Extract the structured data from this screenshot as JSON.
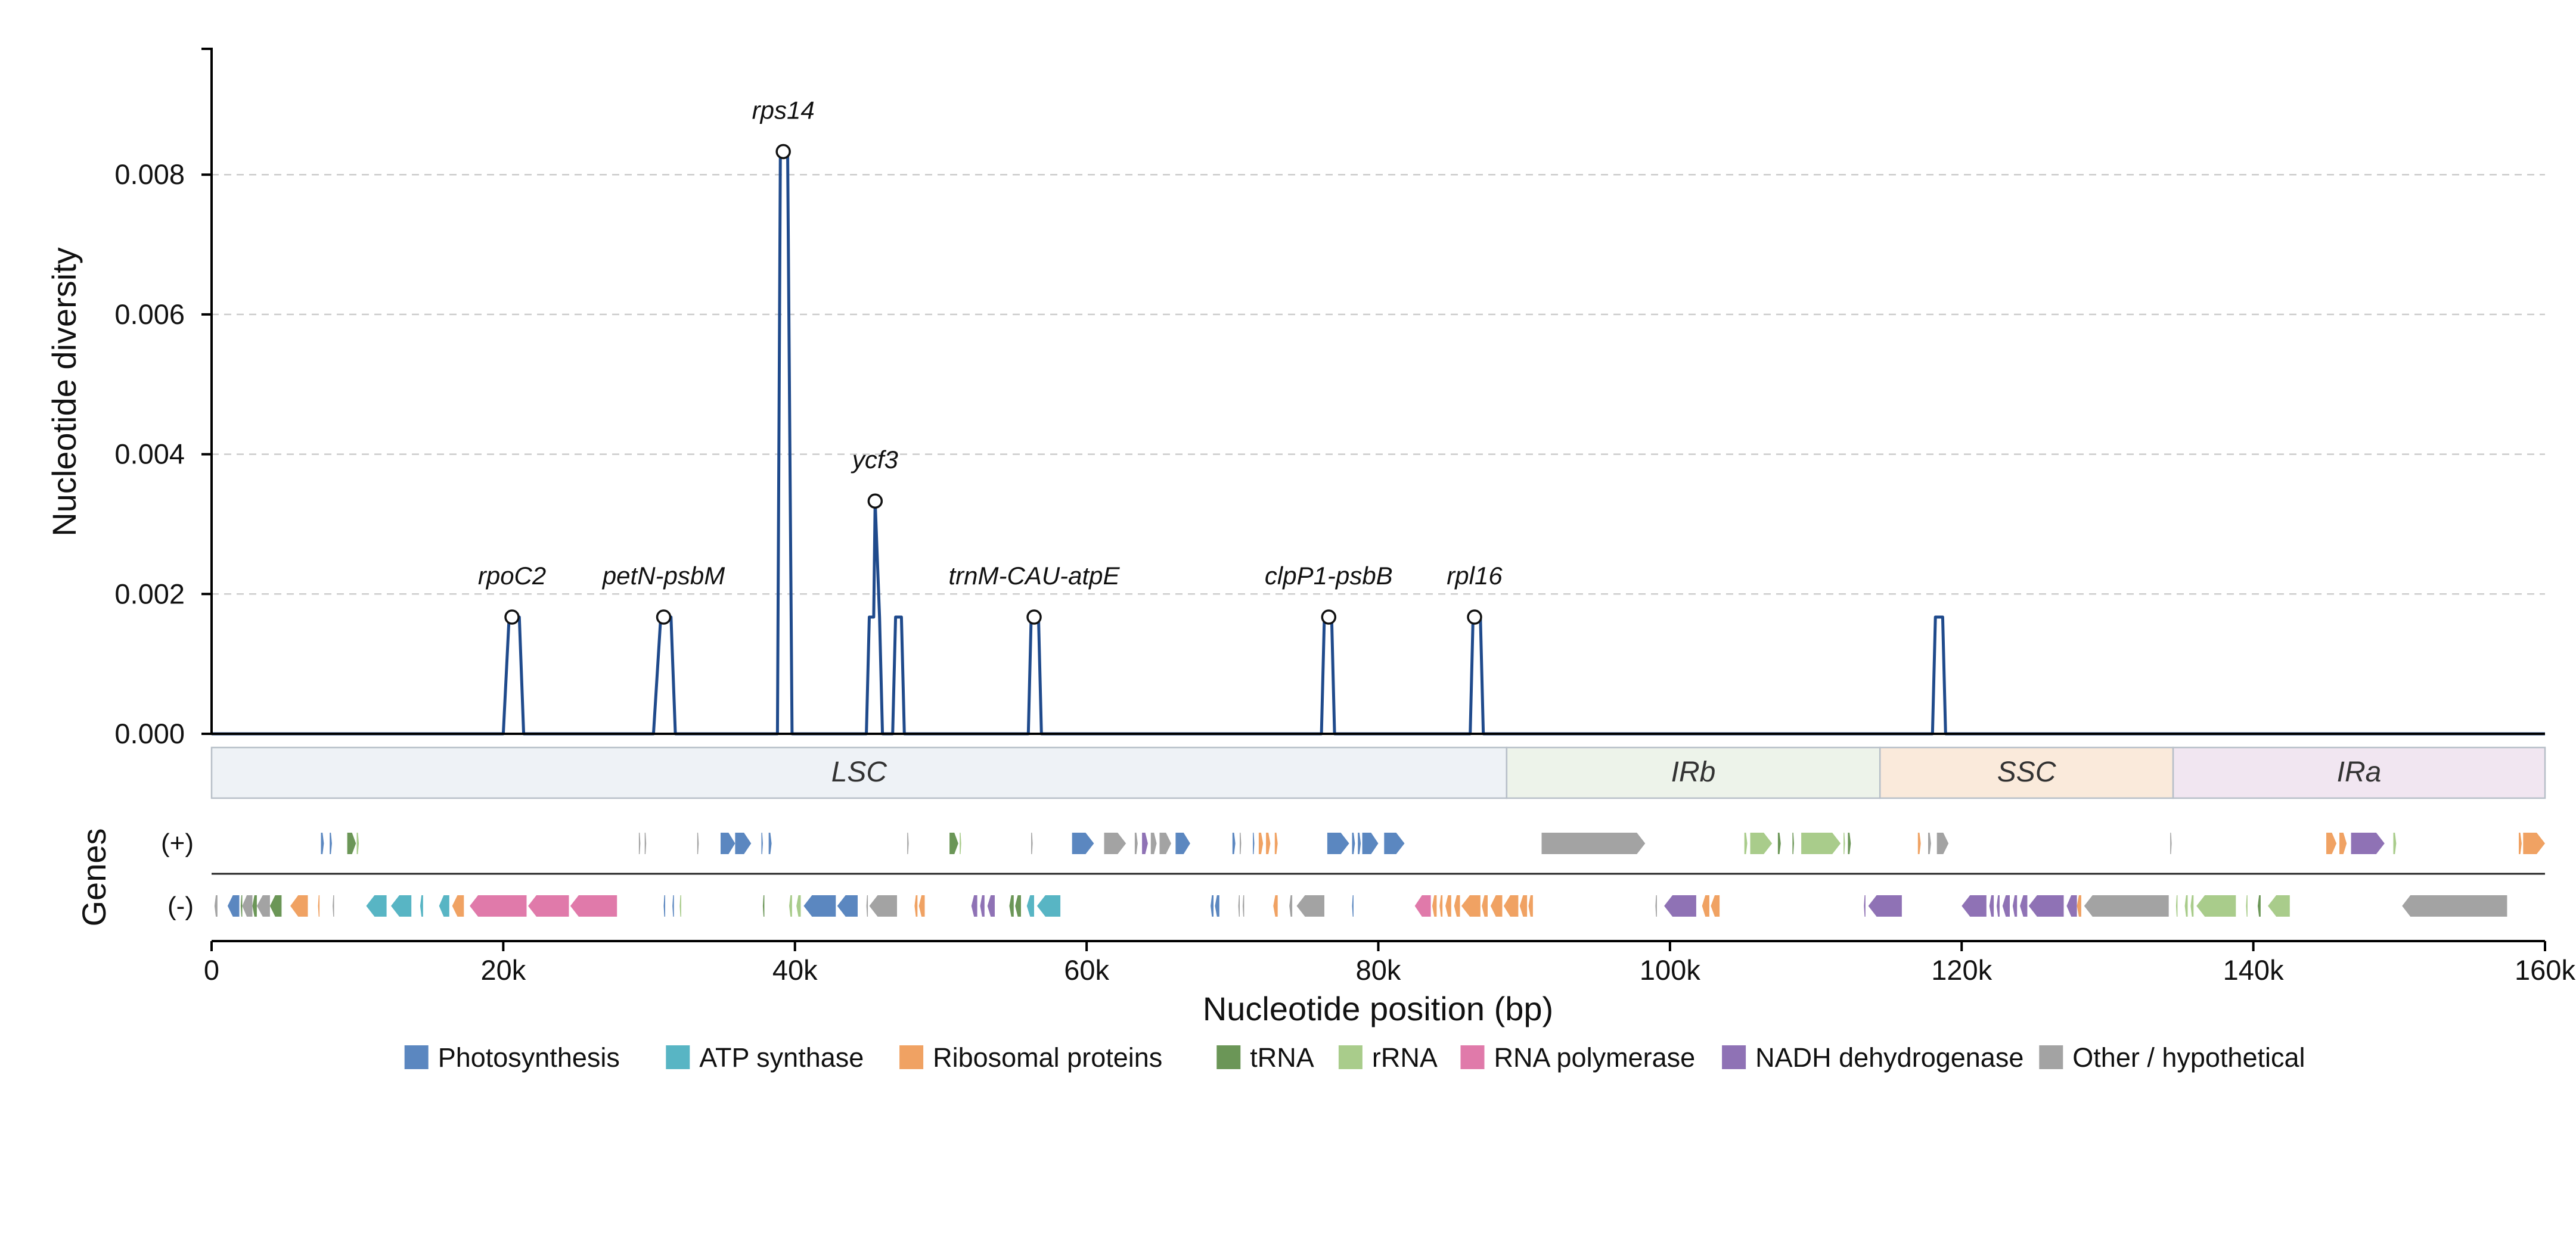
{
  "chart_data": {
    "type": "line",
    "ylabel": "Nucleotide diversity",
    "xlabel": "Nucleotide position (bp)",
    "genes_axis_label": "Genes",
    "ylim": [
      0,
      0.0098
    ],
    "xlim": [
      0,
      160000
    ],
    "yticks": [
      0.0,
      0.002,
      0.004,
      0.006,
      0.008
    ],
    "ytick_labels": [
      "0.000",
      "0.002",
      "0.004",
      "0.006",
      "0.008"
    ],
    "xticks": [
      0,
      20000,
      40000,
      60000,
      80000,
      100000,
      120000,
      140000,
      160000
    ],
    "xtick_labels": [
      "0",
      "20k",
      "40k",
      "60k",
      "80k",
      "100k",
      "120k",
      "140k",
      "160k"
    ],
    "grid": true,
    "series_color": "#1f4a8c",
    "series": [
      {
        "x": [
          0,
          20000,
          20400,
          21100,
          21400,
          30300,
          30800,
          31500,
          31800,
          38800,
          39000,
          39500,
          39800,
          44900,
          45100,
          45400,
          45500,
          45800,
          46000,
          46700,
          46900,
          47300,
          47500,
          56000,
          56200,
          56700,
          56900,
          76100,
          76300,
          76800,
          77000,
          86300,
          86500,
          87000,
          87200,
          118000,
          118200,
          118700,
          118900,
          160000
        ],
        "y": [
          0,
          0,
          0.00167,
          0.00167,
          0,
          0,
          0.00167,
          0.00167,
          0,
          0,
          0.00833,
          0.00833,
          0,
          0,
          0.00167,
          0.00167,
          0.00333,
          0.00167,
          0,
          0,
          0.00167,
          0.00167,
          0,
          0,
          0.00167,
          0.00167,
          0,
          0,
          0.00167,
          0.00167,
          0,
          0,
          0.00167,
          0.00167,
          0,
          0,
          0.00167,
          0.00167,
          0,
          0
        ]
      }
    ],
    "peaks": [
      {
        "label": "rpoC2",
        "x": 20600,
        "y": 0.00167
      },
      {
        "label": "petN-psbM",
        "x": 31000,
        "y": 0.00167
      },
      {
        "label": "rps14",
        "x": 39200,
        "y": 0.00833
      },
      {
        "label": "ycf3",
        "x": 45500,
        "y": 0.00333
      },
      {
        "label": "trnM-CAU-atpE",
        "x": 56400,
        "y": 0.00167
      },
      {
        "label": "clpP1-psbB",
        "x": 76600,
        "y": 0.00167
      },
      {
        "label": "rpl16",
        "x": 86600,
        "y": 0.00167
      }
    ],
    "regions": [
      {
        "label": "LSC",
        "start": 0,
        "end": 88800,
        "color": "#eef2f6"
      },
      {
        "label": "IRb",
        "start": 88800,
        "end": 114400,
        "color": "#edf3ea"
      },
      {
        "label": "SSC",
        "start": 114400,
        "end": 134500,
        "color": "#faeadb"
      },
      {
        "label": "IRa",
        "start": 134500,
        "end": 160000,
        "color": "#f1e6f1"
      }
    ],
    "strands": {
      "plus": "(+)",
      "minus": "(-)"
    },
    "gene_categories": [
      {
        "key": "photo",
        "label": "Photosynthesis",
        "color": "#5b87c0"
      },
      {
        "key": "atp",
        "label": "ATP synthase",
        "color": "#58b5c4"
      },
      {
        "key": "ribo",
        "label": "Ribosomal proteins",
        "color": "#f0a263"
      },
      {
        "key": "trna",
        "label": "tRNA",
        "color": "#6b9657"
      },
      {
        "key": "rrna",
        "label": "rRNA",
        "color": "#a9cc8b"
      },
      {
        "key": "rnap",
        "label": "RNA polymerase",
        "color": "#e07aaa"
      },
      {
        "key": "ndh",
        "label": "NADH dehydrogenase",
        "color": "#8f72b5"
      },
      {
        "key": "other",
        "label": "Other / hypothetical",
        "color": "#a3a3a3"
      }
    ],
    "genes_plus": [
      {
        "s": 7500,
        "e": 7700,
        "c": "photo"
      },
      {
        "s": 8100,
        "e": 8250,
        "c": "photo"
      },
      {
        "s": 9300,
        "e": 9900,
        "c": "trna"
      },
      {
        "s": 9950,
        "e": 10100,
        "c": "rrna"
      },
      {
        "s": 29300,
        "e": 29400,
        "c": "other"
      },
      {
        "s": 29700,
        "e": 29800,
        "c": "other"
      },
      {
        "s": 33300,
        "e": 33400,
        "c": "other"
      },
      {
        "s": 34900,
        "e": 35900,
        "c": "photo"
      },
      {
        "s": 35900,
        "e": 37000,
        "c": "photo"
      },
      {
        "s": 37700,
        "e": 37800,
        "c": "photo"
      },
      {
        "s": 38200,
        "e": 38400,
        "c": "photo"
      },
      {
        "s": 47700,
        "e": 47800,
        "c": "other"
      },
      {
        "s": 50600,
        "e": 51200,
        "c": "trna"
      },
      {
        "s": 51300,
        "e": 51400,
        "c": "rrna"
      },
      {
        "s": 56200,
        "e": 56300,
        "c": "other"
      },
      {
        "s": 59000,
        "e": 60500,
        "c": "photo"
      },
      {
        "s": 61200,
        "e": 62700,
        "c": "other"
      },
      {
        "s": 63300,
        "e": 63500,
        "c": "other"
      },
      {
        "s": 63800,
        "e": 64200,
        "c": "ndh"
      },
      {
        "s": 64400,
        "e": 64800,
        "c": "other"
      },
      {
        "s": 65000,
        "e": 65800,
        "c": "other"
      },
      {
        "s": 66100,
        "e": 67100,
        "c": "photo"
      },
      {
        "s": 70000,
        "e": 70200,
        "c": "photo"
      },
      {
        "s": 70500,
        "e": 70600,
        "c": "other"
      },
      {
        "s": 71400,
        "e": 71500,
        "c": "photo"
      },
      {
        "s": 71800,
        "e": 72100,
        "c": "ribo"
      },
      {
        "s": 72300,
        "e": 72600,
        "c": "ribo"
      },
      {
        "s": 72900,
        "e": 73100,
        "c": "ribo"
      },
      {
        "s": 76500,
        "e": 78000,
        "c": "photo"
      },
      {
        "s": 78200,
        "e": 78400,
        "c": "photo"
      },
      {
        "s": 78600,
        "e": 78800,
        "c": "photo"
      },
      {
        "s": 78900,
        "e": 80000,
        "c": "photo"
      },
      {
        "s": 80400,
        "e": 81800,
        "c": "photo"
      },
      {
        "s": 91200,
        "e": 98300,
        "c": "other"
      },
      {
        "s": 105100,
        "e": 105300,
        "c": "rrna"
      },
      {
        "s": 105500,
        "e": 107000,
        "c": "rrna"
      },
      {
        "s": 107400,
        "e": 107600,
        "c": "trna"
      },
      {
        "s": 108400,
        "e": 108500,
        "c": "trna"
      },
      {
        "s": 109000,
        "e": 111700,
        "c": "rrna"
      },
      {
        "s": 111900,
        "e": 112000,
        "c": "rrna"
      },
      {
        "s": 112200,
        "e": 112400,
        "c": "trna"
      },
      {
        "s": 117000,
        "e": 117200,
        "c": "ribo"
      },
      {
        "s": 117700,
        "e": 117900,
        "c": "other"
      },
      {
        "s": 118300,
        "e": 119100,
        "c": "other"
      },
      {
        "s": 134300,
        "e": 134400,
        "c": "other"
      },
      {
        "s": 145000,
        "e": 145700,
        "c": "ribo"
      },
      {
        "s": 145900,
        "e": 146400,
        "c": "ribo"
      },
      {
        "s": 146700,
        "e": 149000,
        "c": "ndh"
      },
      {
        "s": 149600,
        "e": 149800,
        "c": "rrna"
      },
      {
        "s": 158200,
        "e": 158400,
        "c": "ribo"
      },
      {
        "s": 158500,
        "e": 160000,
        "c": "ribo"
      }
    ],
    "genes_minus": [
      {
        "s": 200,
        "e": 400,
        "c": "other"
      },
      {
        "s": 1100,
        "e": 1900,
        "c": "photo"
      },
      {
        "s": 2000,
        "e": 2100,
        "c": "trna"
      },
      {
        "s": 2100,
        "e": 2800,
        "c": "other"
      },
      {
        "s": 2800,
        "e": 3100,
        "c": "trna"
      },
      {
        "s": 3100,
        "e": 4000,
        "c": "other"
      },
      {
        "s": 4000,
        "e": 4800,
        "c": "trna"
      },
      {
        "s": 5400,
        "e": 6600,
        "c": "ribo"
      },
      {
        "s": 7300,
        "e": 7400,
        "c": "ribo"
      },
      {
        "s": 8300,
        "e": 8400,
        "c": "other"
      },
      {
        "s": 10600,
        "e": 12000,
        "c": "atp"
      },
      {
        "s": 12300,
        "e": 13700,
        "c": "atp"
      },
      {
        "s": 14300,
        "e": 14500,
        "c": "atp"
      },
      {
        "s": 15600,
        "e": 16300,
        "c": "atp"
      },
      {
        "s": 16500,
        "e": 17300,
        "c": "ribo"
      },
      {
        "s": 17700,
        "e": 21600,
        "c": "rnap"
      },
      {
        "s": 21700,
        "e": 24500,
        "c": "rnap"
      },
      {
        "s": 24600,
        "e": 27800,
        "c": "rnap"
      },
      {
        "s": 31000,
        "e": 31100,
        "c": "photo"
      },
      {
        "s": 31600,
        "e": 31700,
        "c": "photo"
      },
      {
        "s": 32100,
        "e": 32200,
        "c": "rrna"
      },
      {
        "s": 37800,
        "e": 37900,
        "c": "trna"
      },
      {
        "s": 39600,
        "e": 39800,
        "c": "rrna"
      },
      {
        "s": 40100,
        "e": 40400,
        "c": "rrna"
      },
      {
        "s": 40600,
        "e": 42800,
        "c": "photo"
      },
      {
        "s": 42900,
        "e": 44300,
        "c": "photo"
      },
      {
        "s": 44900,
        "e": 45000,
        "c": "other"
      },
      {
        "s": 45100,
        "e": 47000,
        "c": "other"
      },
      {
        "s": 48200,
        "e": 48400,
        "c": "ribo"
      },
      {
        "s": 48500,
        "e": 48900,
        "c": "ribo"
      },
      {
        "s": 52100,
        "e": 52500,
        "c": "ndh"
      },
      {
        "s": 52700,
        "e": 53000,
        "c": "ndh"
      },
      {
        "s": 53200,
        "e": 53700,
        "c": "ndh"
      },
      {
        "s": 54700,
        "e": 55000,
        "c": "trna"
      },
      {
        "s": 55100,
        "e": 55500,
        "c": "trna"
      },
      {
        "s": 55900,
        "e": 56400,
        "c": "atp"
      },
      {
        "s": 56600,
        "e": 58200,
        "c": "atp"
      },
      {
        "s": 68500,
        "e": 68700,
        "c": "photo"
      },
      {
        "s": 68800,
        "e": 69100,
        "c": "photo"
      },
      {
        "s": 70400,
        "e": 70500,
        "c": "other"
      },
      {
        "s": 70700,
        "e": 70800,
        "c": "other"
      },
      {
        "s": 72800,
        "e": 73100,
        "c": "ribo"
      },
      {
        "s": 73900,
        "e": 74100,
        "c": "other"
      },
      {
        "s": 74400,
        "e": 76300,
        "c": "other"
      },
      {
        "s": 78200,
        "e": 78300,
        "c": "photo"
      },
      {
        "s": 82500,
        "e": 83600,
        "c": "rnap"
      },
      {
        "s": 83700,
        "e": 84000,
        "c": "ribo"
      },
      {
        "s": 84200,
        "e": 84400,
        "c": "ribo"
      },
      {
        "s": 84600,
        "e": 85000,
        "c": "ribo"
      },
      {
        "s": 85200,
        "e": 85600,
        "c": "ribo"
      },
      {
        "s": 85700,
        "e": 87000,
        "c": "ribo"
      },
      {
        "s": 87100,
        "e": 87500,
        "c": "ribo"
      },
      {
        "s": 87700,
        "e": 88500,
        "c": "ribo"
      },
      {
        "s": 88600,
        "e": 89600,
        "c": "ribo"
      },
      {
        "s": 89700,
        "e": 90200,
        "c": "ribo"
      },
      {
        "s": 90300,
        "e": 90600,
        "c": "ribo"
      },
      {
        "s": 99000,
        "e": 99100,
        "c": "other"
      },
      {
        "s": 99600,
        "e": 101800,
        "c": "ndh"
      },
      {
        "s": 102200,
        "e": 102700,
        "c": "ribo"
      },
      {
        "s": 102800,
        "e": 103400,
        "c": "ribo"
      },
      {
        "s": 113300,
        "e": 113400,
        "c": "ndh"
      },
      {
        "s": 113600,
        "e": 115900,
        "c": "ndh"
      },
      {
        "s": 120000,
        "e": 121700,
        "c": "ndh"
      },
      {
        "s": 121900,
        "e": 122200,
        "c": "ndh"
      },
      {
        "s": 122400,
        "e": 122600,
        "c": "ndh"
      },
      {
        "s": 122800,
        "e": 123300,
        "c": "ndh"
      },
      {
        "s": 123500,
        "e": 123800,
        "c": "ndh"
      },
      {
        "s": 124000,
        "e": 124500,
        "c": "ndh"
      },
      {
        "s": 124600,
        "e": 127000,
        "c": "ndh"
      },
      {
        "s": 127200,
        "e": 127900,
        "c": "ndh"
      },
      {
        "s": 127900,
        "e": 128200,
        "c": "ribo"
      },
      {
        "s": 128400,
        "e": 134200,
        "c": "other"
      },
      {
        "s": 134700,
        "e": 134800,
        "c": "rrna"
      },
      {
        "s": 135300,
        "e": 135500,
        "c": "rrna"
      },
      {
        "s": 135700,
        "e": 135900,
        "c": "rrna"
      },
      {
        "s": 136100,
        "e": 138800,
        "c": "rrna"
      },
      {
        "s": 139500,
        "e": 139600,
        "c": "rrna"
      },
      {
        "s": 140300,
        "e": 140500,
        "c": "trna"
      },
      {
        "s": 141000,
        "e": 142500,
        "c": "rrna"
      },
      {
        "s": 150200,
        "e": 157400,
        "c": "other"
      }
    ],
    "legend_position": "bottom-center"
  }
}
